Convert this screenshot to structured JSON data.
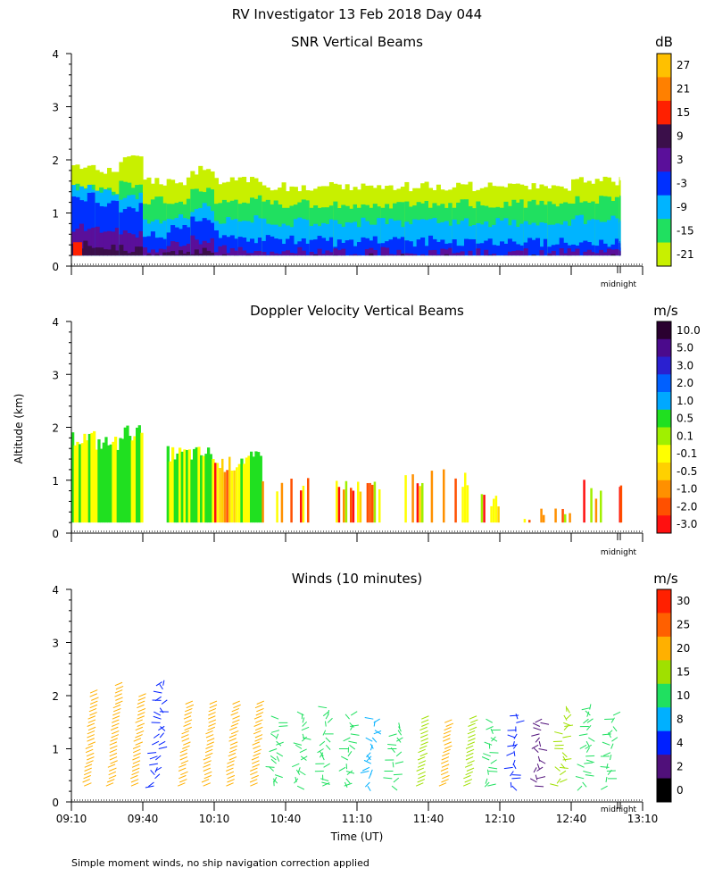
{
  "figure_title": "RV Investigator  13 Feb 2018 Day 044",
  "y_axis_label": "Altitude (km)",
  "x_axis_label": "Time (UT)",
  "footnote": "Simple moment winds, no ship navigation correction applied",
  "midnight_label": "midnight",
  "chart_data": [
    {
      "type": "heatmap",
      "title": "SNR Vertical Beams",
      "ylabel": "Altitude (km)",
      "yticks": [
        "0",
        "1",
        "2",
        "3",
        "4"
      ],
      "ylim": [
        0,
        4
      ],
      "colorbar": {
        "unit": "dB",
        "labels": [
          "27",
          "21",
          "15",
          "9",
          "3",
          "-3",
          "-9",
          "-15",
          "-21"
        ],
        "colors": [
          "#ffc000",
          "#ff8000",
          "#ff2000",
          "#3b0f4a",
          "#5a0f9a",
          "#0030ff",
          "#00b4ff",
          "#20e060",
          "#c8f000"
        ]
      },
      "profile": {
        "time": [
          "09:10",
          "09:20",
          "09:30",
          "09:40",
          "09:50",
          "10:00",
          "10:10",
          "10:20",
          "10:30",
          "10:40",
          "10:50",
          "11:00",
          "11:10",
          "11:20",
          "11:30",
          "11:40",
          "11:50",
          "12:00",
          "12:10",
          "12:20",
          "12:30",
          "12:40",
          "12:50",
          "13:00"
        ],
        "top_km": [
          1.9,
          1.8,
          2.0,
          1.6,
          1.6,
          1.8,
          1.6,
          1.6,
          1.5,
          1.5,
          1.5,
          1.5,
          1.5,
          1.5,
          1.5,
          1.5,
          1.5,
          1.5,
          1.5,
          1.5,
          1.5,
          1.6,
          1.6,
          1.6
        ],
        "strong_top_km": [
          1.3,
          1.2,
          1.1,
          0.6,
          0.7,
          0.9,
          0.6,
          0.5,
          0.5,
          0.5,
          0.5,
          0.45,
          0.5,
          0.5,
          0.45,
          0.5,
          0.45,
          0.45,
          0.45,
          0.45,
          0.45,
          0.45,
          0.45,
          0.4
        ]
      }
    },
    {
      "type": "heatmap",
      "title": "Doppler Velocity Vertical Beams",
      "ylabel": "Altitude (km)",
      "yticks": [
        "0",
        "1",
        "2",
        "3",
        "4"
      ],
      "ylim": [
        0,
        4
      ],
      "colorbar": {
        "unit": "m/s",
        "labels": [
          "10.0",
          "5.0",
          "3.0",
          "2.0",
          "1.0",
          "0.5",
          "0.1",
          "-0.1",
          "-0.5",
          "-1.0",
          "-2.0",
          "-3.0"
        ],
        "colors": [
          "#2a0030",
          "#4b0a8c",
          "#2a20d0",
          "#0060ff",
          "#00a8ff",
          "#20e020",
          "#a0f000",
          "#ffff00",
          "#ffd000",
          "#ff9000",
          "#ff5000",
          "#ff1010"
        ]
      },
      "profile": {
        "time": [
          "09:10",
          "09:20",
          "09:30",
          "09:40",
          "09:50",
          "10:00",
          "10:10",
          "10:20",
          "10:30",
          "10:40",
          "10:50",
          "11:00",
          "11:10",
          "11:20",
          "11:30",
          "11:40",
          "11:50",
          "12:00",
          "12:10",
          "12:20",
          "12:30",
          "12:40",
          "12:50",
          "13:00"
        ],
        "top_km": [
          1.8,
          1.7,
          1.9,
          0,
          1.5,
          1.5,
          1.3,
          1.4,
          0.9,
          0.9,
          0,
          0.9,
          0.9,
          0,
          1.0,
          1.2,
          1.0,
          0.6,
          0,
          0.4,
          0.4,
          0.9,
          0.8,
          0.9
        ]
      }
    },
    {
      "type": "scatter",
      "title": "Winds (10 minutes)",
      "ylabel": "Altitude (km)",
      "yticks": [
        "0",
        "1",
        "2",
        "3",
        "4"
      ],
      "ylim": [
        0,
        4
      ],
      "colorbar": {
        "unit": "m/s",
        "labels": [
          "30",
          "25",
          "20",
          "15",
          "10",
          "8",
          "4",
          "2",
          "0"
        ],
        "colors": [
          "#ff2000",
          "#ff6000",
          "#ffb000",
          "#a0e000",
          "#20e060",
          "#00b0ff",
          "#0020ff",
          "#50107a",
          "#000000"
        ]
      },
      "profile": {
        "time": [
          "09:15",
          "09:25",
          "09:35",
          "09:45",
          "09:55",
          "10:05",
          "10:15",
          "10:25",
          "10:35",
          "10:45",
          "10:55",
          "11:05",
          "11:15",
          "11:25",
          "11:35",
          "11:45",
          "11:55",
          "12:05",
          "12:15",
          "12:25",
          "12:35",
          "12:45",
          "12:55"
        ],
        "speed_ms": [
          26,
          25,
          22,
          6,
          24,
          25,
          24,
          22,
          15,
          14,
          13,
          12,
          10,
          12,
          20,
          22,
          20,
          16,
          6,
          5,
          18,
          14,
          15
        ],
        "top_km": [
          2.1,
          2.2,
          2.0,
          2.3,
          1.9,
          1.9,
          1.9,
          1.9,
          1.6,
          1.7,
          1.8,
          1.7,
          1.6,
          1.5,
          1.6,
          1.5,
          1.6,
          1.5,
          1.7,
          1.6,
          1.8,
          1.9,
          1.7
        ]
      }
    }
  ],
  "x_axis": {
    "ticks": [
      "09:10",
      "09:40",
      "10:10",
      "10:40",
      "11:10",
      "11:40",
      "12:10",
      "12:40",
      "13:10"
    ]
  }
}
